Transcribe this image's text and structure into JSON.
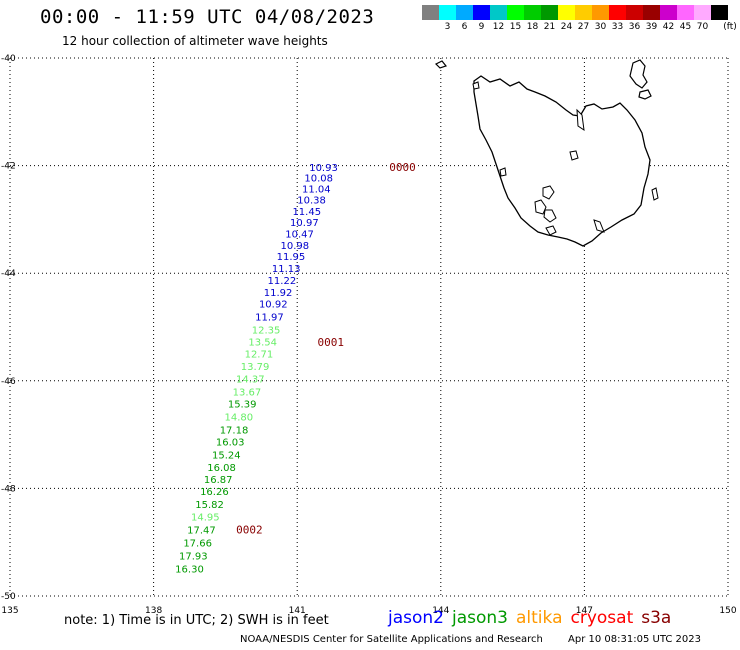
{
  "header": {
    "title": "00:00 - 11:59 UTC 04/08/2023",
    "subtitle": "12 hour collection of altimeter wave heights"
  },
  "colorbar": {
    "unit_label": "(ft)",
    "swatches": [
      {
        "color": "#808080",
        "label": ""
      },
      {
        "color": "#00ffff",
        "label": "3"
      },
      {
        "color": "#00aaff",
        "label": "6"
      },
      {
        "color": "#0000ff",
        "label": "9"
      },
      {
        "color": "#00c8c8",
        "label": "12"
      },
      {
        "color": "#00ff00",
        "label": "15"
      },
      {
        "color": "#00cc00",
        "label": "18"
      },
      {
        "color": "#009900",
        "label": "21"
      },
      {
        "color": "#ffff00",
        "label": "24"
      },
      {
        "color": "#ffcc00",
        "label": "27"
      },
      {
        "color": "#ff9900",
        "label": "30"
      },
      {
        "color": "#ff0000",
        "label": "33"
      },
      {
        "color": "#cc0000",
        "label": "36"
      },
      {
        "color": "#990000",
        "label": "39"
      },
      {
        "color": "#cc00cc",
        "label": "42"
      },
      {
        "color": "#ff66ff",
        "label": "45"
      },
      {
        "color": "#ffaaff",
        "label": "70"
      },
      {
        "color": "#000000",
        "label": ""
      }
    ]
  },
  "map": {
    "lon_ticks": [
      "135",
      "138",
      "141",
      "144",
      "147",
      "150"
    ],
    "lat_ticks": [
      "-40",
      "-42",
      "-44",
      "-46",
      "-48",
      "-50"
    ],
    "lon_range": [
      135,
      150
    ],
    "lat_range": [
      -50,
      -40
    ],
    "grid": "dotted",
    "land_color": "#000000"
  },
  "observations": [
    {
      "value": "10.93",
      "lon": 141.55,
      "lat": -42.1,
      "color": "#0000cc"
    },
    {
      "value": "10.08",
      "lon": 141.45,
      "lat": -42.3,
      "color": "#0000cc"
    },
    {
      "value": "11.04",
      "lon": 141.4,
      "lat": -42.5,
      "color": "#0000cc"
    },
    {
      "value": "10.38",
      "lon": 141.3,
      "lat": -42.7,
      "color": "#0000cc"
    },
    {
      "value": "11.45",
      "lon": 141.2,
      "lat": -42.92,
      "color": "#0000cc"
    },
    {
      "value": "10.97",
      "lon": 141.15,
      "lat": -43.12,
      "color": "#0000cc"
    },
    {
      "value": "10.47",
      "lon": 141.05,
      "lat": -43.34,
      "color": "#0000cc"
    },
    {
      "value": "10.98",
      "lon": 140.95,
      "lat": -43.55,
      "color": "#0000cc"
    },
    {
      "value": "11.95",
      "lon": 140.87,
      "lat": -43.75,
      "color": "#0000cc"
    },
    {
      "value": "11.13",
      "lon": 140.77,
      "lat": -43.98,
      "color": "#0000cc"
    },
    {
      "value": "11.22",
      "lon": 140.68,
      "lat": -44.2,
      "color": "#0000cc"
    },
    {
      "value": "11.92",
      "lon": 140.6,
      "lat": -44.42,
      "color": "#0000cc"
    },
    {
      "value": "10.92",
      "lon": 140.5,
      "lat": -44.64,
      "color": "#0000cc"
    },
    {
      "value": "11.97",
      "lon": 140.42,
      "lat": -44.88,
      "color": "#0000cc"
    },
    {
      "value": "12.35",
      "lon": 140.35,
      "lat": -45.12,
      "color": "#66ee66"
    },
    {
      "value": "13.54",
      "lon": 140.28,
      "lat": -45.34,
      "color": "#66ee66"
    },
    {
      "value": "12.71",
      "lon": 140.2,
      "lat": -45.57,
      "color": "#66ee66"
    },
    {
      "value": "13.79",
      "lon": 140.12,
      "lat": -45.8,
      "color": "#66ee66"
    },
    {
      "value": "14.37",
      "lon": 140.02,
      "lat": -46.03,
      "color": "#66ee66"
    },
    {
      "value": "13.67",
      "lon": 139.95,
      "lat": -46.27,
      "color": "#66ee66"
    },
    {
      "value": "15.39",
      "lon": 139.85,
      "lat": -46.5,
      "color": "#009900"
    },
    {
      "value": "14.80",
      "lon": 139.78,
      "lat": -46.74,
      "color": "#66ee66"
    },
    {
      "value": "17.18",
      "lon": 139.68,
      "lat": -46.98,
      "color": "#009900"
    },
    {
      "value": "16.03",
      "lon": 139.6,
      "lat": -47.2,
      "color": "#009900"
    },
    {
      "value": "15.24",
      "lon": 139.52,
      "lat": -47.44,
      "color": "#009900"
    },
    {
      "value": "16.08",
      "lon": 139.42,
      "lat": -47.68,
      "color": "#009900"
    },
    {
      "value": "16.87",
      "lon": 139.35,
      "lat": -47.9,
      "color": "#009900"
    },
    {
      "value": "16.26",
      "lon": 139.27,
      "lat": -48.12,
      "color": "#009900"
    },
    {
      "value": "15.82",
      "lon": 139.17,
      "lat": -48.36,
      "color": "#009900"
    },
    {
      "value": "14.95",
      "lon": 139.08,
      "lat": -48.6,
      "color": "#66ee66"
    },
    {
      "value": "17.47",
      "lon": 139.0,
      "lat": -48.84,
      "color": "#009900"
    },
    {
      "value": "17.66",
      "lon": 138.92,
      "lat": -49.08,
      "color": "#009900"
    },
    {
      "value": "17.93",
      "lon": 138.83,
      "lat": -49.32,
      "color": "#009900"
    },
    {
      "value": "16.30",
      "lon": 138.75,
      "lat": -49.56,
      "color": "#009900"
    }
  ],
  "time_markers": [
    {
      "label": "0000",
      "lon": 143.2,
      "lat": -42.1
    },
    {
      "label": "0001",
      "lon": 141.7,
      "lat": -45.35
    },
    {
      "label": "0002",
      "lon": 140.0,
      "lat": -48.84
    }
  ],
  "time_marker_color": "#880000",
  "note": "note:  1) Time is in UTC;  2) SWH is in feet",
  "satellites": [
    {
      "name": "jason2",
      "color": "#0000ff"
    },
    {
      "name": "jason3",
      "color": "#009900"
    },
    {
      "name": "altika",
      "color": "#ff9900"
    },
    {
      "name": "cryosat",
      "color": "#ff0000"
    },
    {
      "name": "s3a",
      "color": "#880000"
    }
  ],
  "footer": {
    "credit": "NOAA/NESDIS Center for Satellite Applications and Research",
    "timestamp": "Apr 10 08:31:05 UTC 2023"
  }
}
